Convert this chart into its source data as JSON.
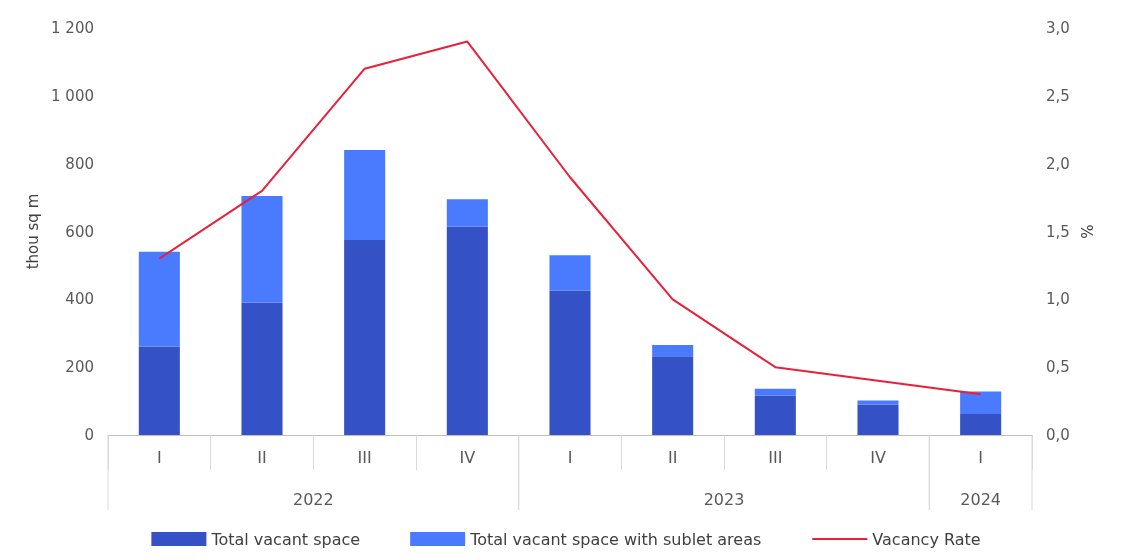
{
  "chart_data": {
    "type": "bar",
    "stacked": true,
    "ylabel": "thou sq m",
    "y2label": "%",
    "categories": [
      "I",
      "II",
      "III",
      "IV",
      "I",
      "II",
      "III",
      "IV",
      "I"
    ],
    "annotations": [
      "2022",
      "2023",
      "2024"
    ],
    "series": [
      {
        "name": "Total vacant space",
        "color": "#3452c6",
        "values": [
          260,
          390,
          575,
          615,
          425,
          232,
          116,
          90,
          62
        ]
      },
      {
        "name": "Total vacant space with sublet areas",
        "color": "#4a7bff",
        "values": [
          280,
          315,
          265,
          80,
          105,
          33,
          20,
          12,
          66
        ]
      },
      {
        "name": "Vacancy Rate",
        "type": "line",
        "axis": "y2",
        "color": "#e8203a",
        "marker": "none",
        "values": [
          1.3,
          1.8,
          2.7,
          2.9,
          1.9,
          1.0,
          0.5,
          0.4,
          0.3
        ]
      }
    ],
    "ylim": [
      0,
      1200
    ],
    "yticks": [
      0,
      200,
      400,
      600,
      800,
      {
        "value": 1000,
        "label": "1 000"
      },
      {
        "value": 1200,
        "label": "1 200"
      }
    ],
    "y2lim": [
      0,
      3
    ],
    "y2ticks": [
      {
        "value": 0,
        "label": "0,0"
      },
      {
        "value": 0.5,
        "label": "0,5"
      },
      {
        "value": 1,
        "label": "1,0"
      },
      {
        "value": 1.5,
        "label": "1,5"
      },
      {
        "value": 2,
        "label": "2,0"
      },
      {
        "value": 2.5,
        "label": "2,5"
      },
      {
        "value": 3,
        "label": "3,0"
      }
    ],
    "grid": false,
    "legend": "bottom"
  }
}
